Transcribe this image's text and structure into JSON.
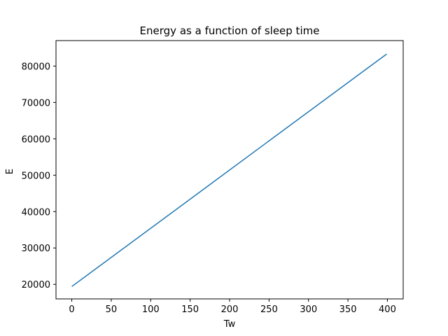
{
  "chart_data": {
    "type": "line",
    "title": "Energy as a function of sleep time",
    "xlabel": "Tw",
    "ylabel": "E",
    "xlim": [
      -20,
      420
    ],
    "ylim": [
      16000,
      87000
    ],
    "xticks": [
      0,
      50,
      100,
      150,
      200,
      250,
      300,
      350,
      400
    ],
    "yticks": [
      20000,
      30000,
      40000,
      50000,
      60000,
      70000,
      80000
    ],
    "grid": false,
    "series": [
      {
        "color": "#1f77b4",
        "x": [
          0,
          399
        ],
        "y": [
          19400,
          83300
        ]
      }
    ]
  }
}
